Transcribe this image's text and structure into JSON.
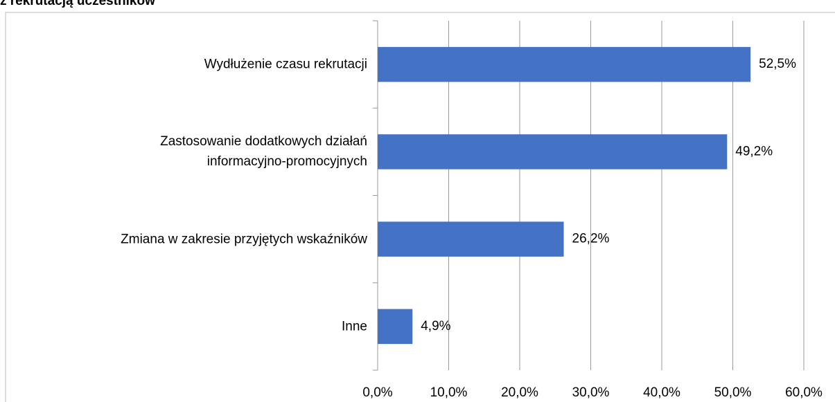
{
  "chart_data": {
    "type": "bar",
    "orientation": "horizontal",
    "title": "z rekrutacją uczestników",
    "categories": [
      "Wydłużenie czasu rekrutacji",
      "Zastosowanie dodatkowych działań\ninformacyjno-promocyjnych",
      "Zmiana w zakresie przyjętych wskaźników",
      "Inne"
    ],
    "values": [
      52.5,
      49.2,
      26.2,
      4.9
    ],
    "value_labels": [
      "52,5%",
      "49,2%",
      "26,2%",
      "4,9%"
    ],
    "color": "#4472c4",
    "xlim": [
      0,
      60
    ],
    "xticks": [
      {
        "value": 0,
        "label": "0,0%"
      },
      {
        "value": 10,
        "label": "10,0%"
      },
      {
        "value": 20,
        "label": "20,0%"
      },
      {
        "value": 30,
        "label": "30,0%"
      },
      {
        "value": 40,
        "label": "40,0%"
      },
      {
        "value": 50,
        "label": "50,0%"
      },
      {
        "value": 60,
        "label": "60,0%"
      }
    ],
    "grid": true
  }
}
